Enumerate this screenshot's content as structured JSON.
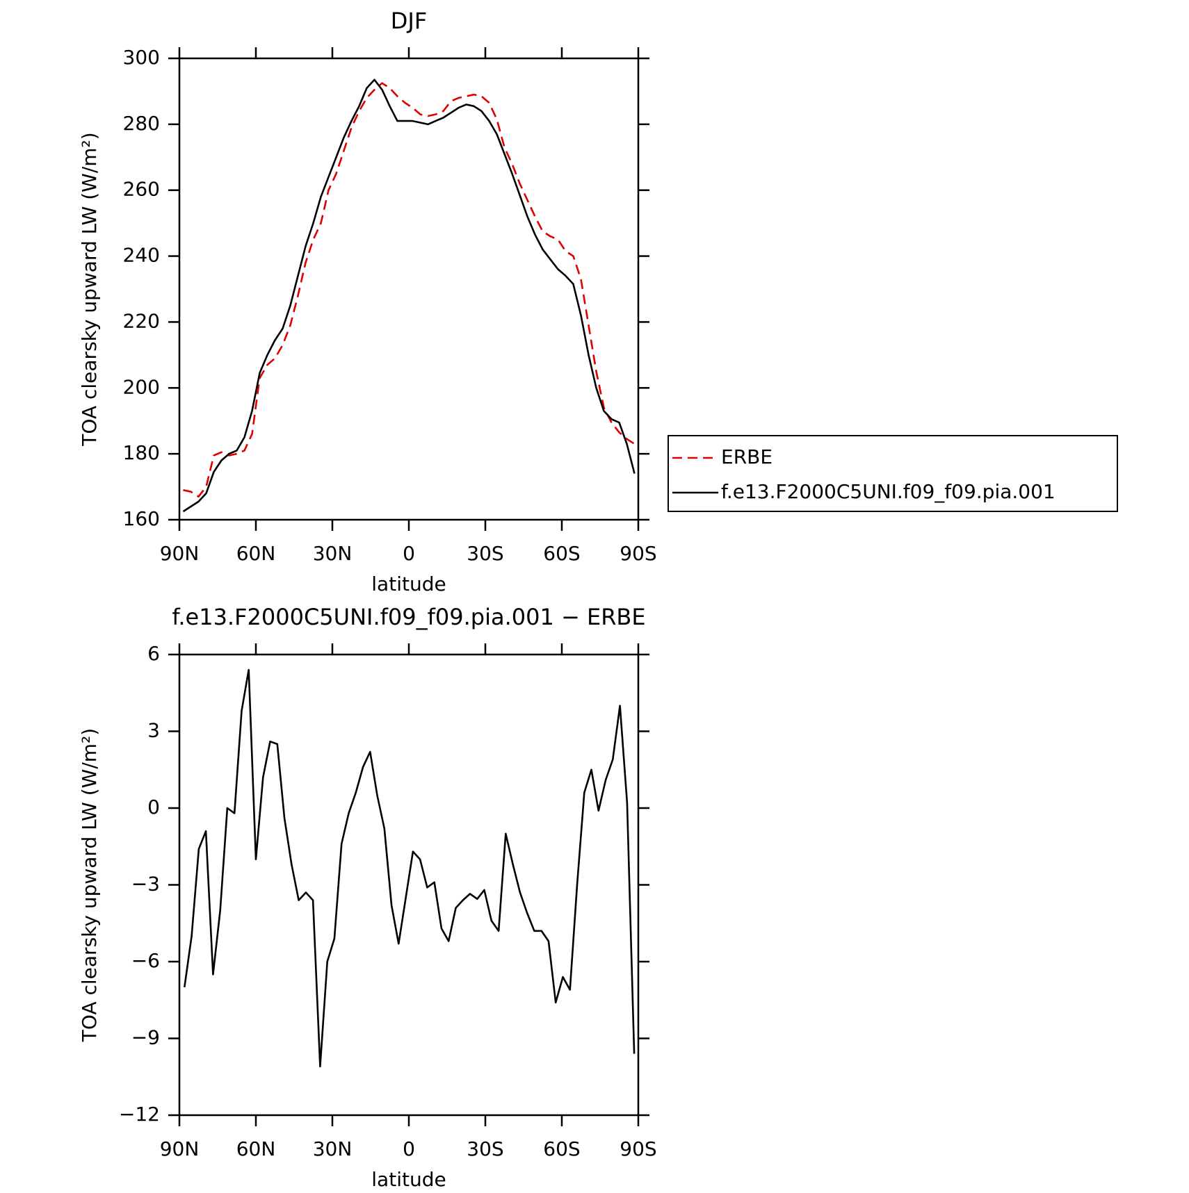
{
  "chart_data": [
    {
      "type": "line",
      "title": "DJF",
      "xlabel": "latitude",
      "ylabel": "TOA clearsky upward LW (W/m²)",
      "x": [
        88.5,
        85.5,
        82.5,
        79.5,
        76.5,
        73.5,
        70.5,
        67.5,
        64.5,
        61.5,
        58.5,
        55.5,
        52.5,
        49.5,
        46.5,
        43.5,
        40.5,
        37.5,
        34.5,
        31.5,
        28.5,
        25.5,
        22.5,
        19.5,
        16.5,
        13.5,
        10.5,
        7.5,
        4.5,
        1.5,
        -1.5,
        -4.5,
        -7.5,
        -10.5,
        -13.5,
        -16.5,
        -19.5,
        -22.5,
        -25.5,
        -28.5,
        -31.5,
        -34.5,
        -37.5,
        -40.5,
        -43.5,
        -46.5,
        -49.5,
        -52.5,
        -55.5,
        -58.5,
        -61.5,
        -64.5,
        -67.5,
        -70.5,
        -73.5,
        -76.5,
        -79.5,
        -82.5,
        -85.5,
        -88.5
      ],
      "series": [
        {
          "name": "ERBE",
          "color": "#e00000",
          "dash": true,
          "values": [
            169,
            168.5,
            167,
            170,
            179.5,
            180.5,
            179.5,
            180,
            181,
            186,
            203,
            207,
            209,
            213,
            219,
            228,
            238,
            245,
            250,
            260,
            265,
            272,
            279,
            284,
            288,
            290.5,
            292.5,
            291,
            288.5,
            286.5,
            285,
            283,
            282.5,
            283,
            284,
            287,
            288,
            288.5,
            289,
            288.5,
            286.5,
            281.5,
            273,
            268,
            262,
            257,
            252,
            247.5,
            246,
            245,
            241.5,
            240,
            233,
            219,
            205,
            194,
            189.5,
            186.5,
            184.5,
            183
          ]
        },
        {
          "name": "f.e13.F2000C5UNI.f09_f09.pia.001",
          "color": "#000000",
          "dash": false,
          "values": [
            162.5,
            164,
            165.5,
            168,
            174.5,
            178,
            180,
            181,
            185,
            193,
            204.5,
            210,
            214.5,
            218,
            225,
            234,
            243,
            250,
            258,
            264,
            270,
            276,
            281,
            285.5,
            291,
            293.5,
            290.5,
            285.5,
            281,
            281,
            281,
            280.5,
            280,
            281,
            282,
            283.5,
            285,
            286,
            285.5,
            284,
            281,
            277,
            271,
            265,
            258.5,
            252,
            246.5,
            242,
            239,
            236,
            234,
            231.5,
            222,
            210,
            200,
            193,
            190.5,
            189.5,
            183,
            174
          ]
        }
      ],
      "xlim": [
        90,
        -90
      ],
      "xticks": [
        {
          "value": 90,
          "label": "90N"
        },
        {
          "value": 60,
          "label": "60N"
        },
        {
          "value": 30,
          "label": "30N"
        },
        0,
        {
          "value": -30,
          "label": "30S"
        },
        {
          "value": -60,
          "label": "60S"
        },
        {
          "value": -90,
          "label": "90S"
        }
      ],
      "ylim": [
        160,
        300
      ],
      "yticks": [
        160,
        180,
        200,
        220,
        240,
        260,
        280,
        300
      ],
      "legend": "right"
    },
    {
      "type": "line",
      "title": "f.e13.F2000C5UNI.f09_f09.pia.001 − ERBE",
      "xlabel": "latitude",
      "ylabel": "TOA clearsky upward LW (W/m²)",
      "x": [
        88,
        85.2,
        82.4,
        79.6,
        76.8,
        74,
        71.2,
        68.4,
        65.6,
        62.8,
        60,
        57.2,
        54.4,
        51.6,
        48.8,
        46,
        43.2,
        40.4,
        37.6,
        34.8,
        32,
        29.2,
        26.4,
        23.6,
        20.8,
        18,
        15.2,
        12.4,
        9.6,
        6.8,
        4,
        1.2,
        -1.6,
        -4.4,
        -7.2,
        -10,
        -12.8,
        -15.6,
        -18.4,
        -21.2,
        -24,
        -26.8,
        -29.6,
        -32.4,
        -35.2,
        -38,
        -40.8,
        -43.6,
        -46.4,
        -49.2,
        -52,
        -54.8,
        -57.6,
        -60.4,
        -63.2,
        -66,
        -68.8,
        -71.6,
        -74.4,
        -77.2,
        -80,
        -82.8,
        -85.6,
        -88.4
      ],
      "series": [
        {
          "color": "#000000",
          "dash": false,
          "values": [
            -7.0,
            -5.0,
            -1.6,
            -0.9,
            -6.5,
            -4.0,
            0.0,
            -0.2,
            3.8,
            5.4,
            -2.0,
            1.2,
            2.6,
            2.5,
            -0.4,
            -2.2,
            -3.6,
            -3.3,
            -3.6,
            -10.1,
            -6.0,
            -5.1,
            -1.4,
            -0.2,
            0.6,
            1.6,
            2.2,
            0.5,
            -0.8,
            -3.8,
            -5.3,
            -3.5,
            -1.7,
            -2.0,
            -3.1,
            -2.9,
            -4.7,
            -5.2,
            -3.9,
            -3.6,
            -3.35,
            -3.55,
            -3.2,
            -4.4,
            -4.8,
            -1.0,
            -2.2,
            -3.3,
            -4.1,
            -4.8,
            -4.8,
            -5.2,
            -7.6,
            -6.6,
            -7.1,
            -3.0,
            0.6,
            1.5,
            -0.1,
            1.1,
            1.9,
            4.0,
            0.2,
            -9.6
          ]
        }
      ],
      "xlim": [
        90,
        -90
      ],
      "xticks": [
        {
          "value": 90,
          "label": "90N"
        },
        {
          "value": 60,
          "label": "60N"
        },
        {
          "value": 30,
          "label": "30N"
        },
        0,
        {
          "value": -30,
          "label": "30S"
        },
        {
          "value": -60,
          "label": "60S"
        },
        {
          "value": -90,
          "label": "90S"
        }
      ],
      "ylim": [
        -12,
        6
      ],
      "yticks": [
        {
          "value": -12,
          "label": "−12"
        },
        {
          "value": -9,
          "label": "−9"
        },
        {
          "value": -6,
          "label": "−6"
        },
        {
          "value": -3,
          "label": "−3"
        },
        0,
        3,
        6
      ]
    }
  ]
}
